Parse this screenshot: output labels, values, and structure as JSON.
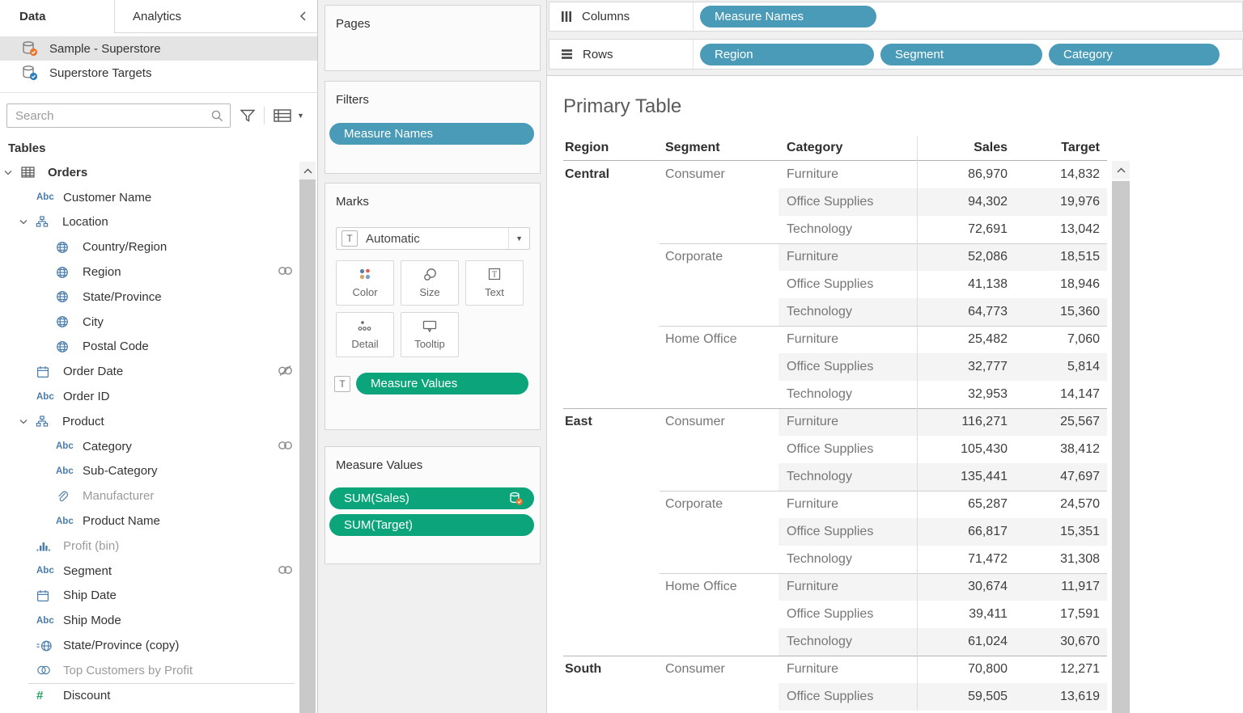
{
  "sidebar": {
    "tabs": [
      {
        "label": "Data"
      },
      {
        "label": "Analytics"
      }
    ],
    "datasources": [
      {
        "name": "Sample - Superstore",
        "badge_color": "#e8762d",
        "selected": true
      },
      {
        "name": "Superstore Targets",
        "badge_color": "#2e7fba",
        "selected": false
      }
    ],
    "search": {
      "placeholder": "Search"
    },
    "tables_header": "Tables",
    "fields": [
      {
        "label": "Orders",
        "icon": "table",
        "indent": 0,
        "bold": true,
        "chevron": true
      },
      {
        "label": "Customer Name",
        "icon": "abc",
        "indent": 1
      },
      {
        "label": "Location",
        "icon": "hierarchy",
        "indent": 1,
        "chevron": true
      },
      {
        "label": "Country/Region",
        "icon": "globe",
        "indent": 2
      },
      {
        "label": "Region",
        "icon": "globe",
        "indent": 2,
        "right": "link"
      },
      {
        "label": "State/Province",
        "icon": "globe",
        "indent": 2
      },
      {
        "label": "City",
        "icon": "globe",
        "indent": 2
      },
      {
        "label": "Postal Code",
        "icon": "globe",
        "indent": 2
      },
      {
        "label": "Order Date",
        "icon": "calendar",
        "indent": 1,
        "right": "link-broken"
      },
      {
        "label": "Order ID",
        "icon": "abc",
        "indent": 1
      },
      {
        "label": "Product",
        "icon": "hierarchy",
        "indent": 1,
        "chevron": true
      },
      {
        "label": "Category",
        "icon": "abc",
        "indent": 2,
        "right": "link"
      },
      {
        "label": "Sub-Category",
        "icon": "abc",
        "indent": 2
      },
      {
        "label": "Manufacturer",
        "icon": "paperclip",
        "indent": 2,
        "gray": true
      },
      {
        "label": "Product Name",
        "icon": "abc",
        "indent": 2
      },
      {
        "label": "Profit (bin)",
        "icon": "histogram",
        "indent": 1,
        "gray": true
      },
      {
        "label": "Segment",
        "icon": "abc",
        "indent": 1,
        "right": "link"
      },
      {
        "label": "Ship Date",
        "icon": "calendar",
        "indent": 1
      },
      {
        "label": "Ship Mode",
        "icon": "abc",
        "indent": 1
      },
      {
        "label": "State/Province (copy)",
        "icon": "globe-eq",
        "indent": 1
      },
      {
        "label": "Top Customers by Profit",
        "icon": "sets",
        "indent": 1,
        "gray": true
      },
      {
        "label": "Discount",
        "icon": "hash",
        "indent": 1,
        "separator_above": true
      }
    ]
  },
  "cards": {
    "pages": {
      "title": "Pages"
    },
    "filters": {
      "title": "Filters",
      "pills": [
        {
          "label": "Measure Names",
          "color": "blue"
        }
      ]
    },
    "marks": {
      "title": "Marks",
      "mark_type": "Automatic",
      "buttons": [
        {
          "label": "Color"
        },
        {
          "label": "Size"
        },
        {
          "label": "Text"
        },
        {
          "label": "Detail"
        },
        {
          "label": "Tooltip"
        }
      ],
      "text_shelf_pill": {
        "label": "Measure Values",
        "color": "green"
      }
    },
    "measure_values": {
      "title": "Measure Values",
      "pills": [
        {
          "label": "SUM(Sales)",
          "badge": true
        },
        {
          "label": "SUM(Target)",
          "badge": false
        }
      ]
    }
  },
  "shelves": {
    "columns": {
      "label": "Columns",
      "pills": [
        "Measure Names"
      ]
    },
    "rows": {
      "label": "Rows",
      "pills": [
        "Region",
        "Segment",
        "Category"
      ]
    }
  },
  "sheet": {
    "title": "Primary Table",
    "table": {
      "columns": [
        "Region",
        "Segment",
        "Category",
        "Sales",
        "Target"
      ],
      "rows": [
        {
          "region": "Central",
          "segment": "Consumer",
          "category": "Furniture",
          "sales": "86,970",
          "target": "14,832",
          "banded": false,
          "sep": null
        },
        {
          "region": "",
          "segment": "",
          "category": "Office Supplies",
          "sales": "94,302",
          "target": "19,976",
          "banded": true,
          "sep": null
        },
        {
          "region": "",
          "segment": "",
          "category": "Technology",
          "sales": "72,691",
          "target": "13,042",
          "banded": false,
          "sep": null
        },
        {
          "region": "",
          "segment": "Corporate",
          "category": "Furniture",
          "sales": "52,086",
          "target": "18,515",
          "banded": true,
          "sep": "segment"
        },
        {
          "region": "",
          "segment": "",
          "category": "Office Supplies",
          "sales": "41,138",
          "target": "18,946",
          "banded": false,
          "sep": null
        },
        {
          "region": "",
          "segment": "",
          "category": "Technology",
          "sales": "64,773",
          "target": "15,360",
          "banded": true,
          "sep": null
        },
        {
          "region": "",
          "segment": "Home Office",
          "category": "Furniture",
          "sales": "25,482",
          "target": "7,060",
          "banded": false,
          "sep": "segment"
        },
        {
          "region": "",
          "segment": "",
          "category": "Office Supplies",
          "sales": "32,777",
          "target": "5,814",
          "banded": true,
          "sep": null
        },
        {
          "region": "",
          "segment": "",
          "category": "Technology",
          "sales": "32,953",
          "target": "14,147",
          "banded": false,
          "sep": null
        },
        {
          "region": "East",
          "segment": "Consumer",
          "category": "Furniture",
          "sales": "116,271",
          "target": "25,567",
          "banded": true,
          "sep": "region"
        },
        {
          "region": "",
          "segment": "",
          "category": "Office Supplies",
          "sales": "105,430",
          "target": "38,412",
          "banded": false,
          "sep": null
        },
        {
          "region": "",
          "segment": "",
          "category": "Technology",
          "sales": "135,441",
          "target": "47,697",
          "banded": true,
          "sep": null
        },
        {
          "region": "",
          "segment": "Corporate",
          "category": "Furniture",
          "sales": "65,287",
          "target": "24,570",
          "banded": false,
          "sep": "segment"
        },
        {
          "region": "",
          "segment": "",
          "category": "Office Supplies",
          "sales": "66,817",
          "target": "15,351",
          "banded": true,
          "sep": null
        },
        {
          "region": "",
          "segment": "",
          "category": "Technology",
          "sales": "71,472",
          "target": "31,308",
          "banded": false,
          "sep": null
        },
        {
          "region": "",
          "segment": "Home Office",
          "category": "Furniture",
          "sales": "30,674",
          "target": "11,917",
          "banded": true,
          "sep": "segment"
        },
        {
          "region": "",
          "segment": "",
          "category": "Office Supplies",
          "sales": "39,411",
          "target": "17,591",
          "banded": false,
          "sep": null
        },
        {
          "region": "",
          "segment": "",
          "category": "Technology",
          "sales": "61,024",
          "target": "30,670",
          "banded": true,
          "sep": null
        },
        {
          "region": "South",
          "segment": "Consumer",
          "category": "Furniture",
          "sales": "70,800",
          "target": "12,271",
          "banded": false,
          "sep": "region"
        },
        {
          "region": "",
          "segment": "",
          "category": "Office Supplies",
          "sales": "59,505",
          "target": "13,619",
          "banded": true,
          "sep": null
        }
      ]
    }
  },
  "colors": {
    "dimension_pill_blue": "#4a9bb7",
    "measure_pill_green": "#0ca57b",
    "field_icon_blue": "#4a7dab",
    "measure_icon_green": "#22a463",
    "primary_source_badge": "#e8762d",
    "secondary_source_badge": "#2e7fba",
    "row_band": "#f4f4f4"
  }
}
